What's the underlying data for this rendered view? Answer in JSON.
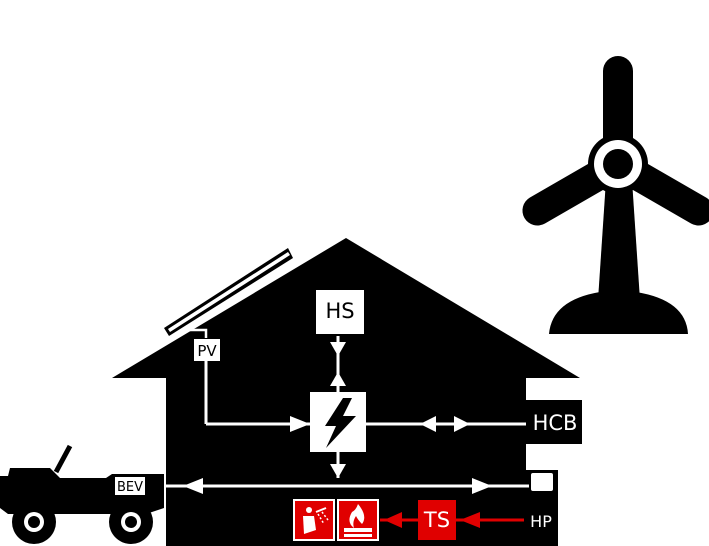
{
  "labels": {
    "hs": "HS",
    "pv": "PV",
    "hcb": "HCB",
    "bev": "BEV",
    "ts": "TS",
    "hp": "HP"
  },
  "colors": {
    "silhouette": "#000000",
    "flow_electric": "#ffffff",
    "flow_thermal": "#e00000",
    "thermal_box": "#e00000",
    "box_fill": "#ffffff"
  },
  "icons": {
    "inverter": "lightning-bolt-icon",
    "hot_water": "shower-icon",
    "space_heating": "flame-radiator-icon",
    "wind": "wind-turbine-icon",
    "vehicle": "jeep-icon",
    "solar": "solar-panel-icon"
  }
}
